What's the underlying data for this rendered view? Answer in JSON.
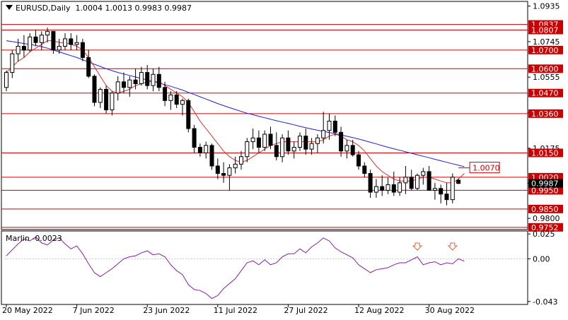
{
  "header": {
    "symbol": "EURUSD,Daily",
    "open": "1.0004",
    "high": "1.0013",
    "low": "0.9983",
    "close": "0.9987"
  },
  "indicator": {
    "name": "Marlin",
    "value": "-0.0023"
  },
  "colors": {
    "bull": "#ffffff",
    "bear": "#000000",
    "ma_fast": "#e03030",
    "ma_slow": "#2020d0",
    "level": "#cc0000",
    "marlin": "#8b1aa8",
    "arrow": "#e06040"
  },
  "chart_data": [
    {
      "type": "candlestick",
      "title": "EURUSD,Daily",
      "y_ticks": [
        "1.0935",
        "1.0745",
        "1.0555",
        "1.0365",
        "1.0175",
        "0.9987",
        "0.9800"
      ],
      "ylim": [
        0.974,
        1.096
      ],
      "x_tick_labels": [
        {
          "label": "20 May 2022",
          "index": 0
        },
        {
          "label": "7 Jun 2022",
          "index": 12
        },
        {
          "label": "23 Jun 2022",
          "index": 24
        },
        {
          "label": "11 Jul 2022",
          "index": 36
        },
        {
          "label": "27 Jul 2022",
          "index": 48
        },
        {
          "label": "12 Aug 2022",
          "index": 60
        },
        {
          "label": "30 Aug 2022",
          "index": 72
        }
      ],
      "levels": [
        {
          "value": 1.0837,
          "label": "1.0837"
        },
        {
          "value": 1.0807,
          "label": "1.0807"
        },
        {
          "value": 1.07,
          "label": "1.0700"
        },
        {
          "value": 1.06,
          "label": "1.0600"
        },
        {
          "value": 1.047,
          "label": "1.0470"
        },
        {
          "value": 1.036,
          "label": "1.0360"
        },
        {
          "value": 1.015,
          "label": "1.0150"
        },
        {
          "value": 1.002,
          "label": "1.0020"
        },
        {
          "value": 0.995,
          "label": "0.9950"
        },
        {
          "value": 0.985,
          "label": "0.9850"
        },
        {
          "value": 0.9752,
          "label": "0.9752"
        }
      ],
      "current_price": {
        "value": 0.9987,
        "label": "0.9987"
      },
      "target": {
        "value": 1.007,
        "label": "1.0070",
        "index": 77
      },
      "candles": [
        [
          1.05,
          1.059,
          1.048,
          1.058
        ],
        [
          1.058,
          1.07,
          1.055,
          1.068
        ],
        [
          1.068,
          1.076,
          1.064,
          1.072
        ],
        [
          1.072,
          1.078,
          1.066,
          1.07
        ],
        [
          1.07,
          1.079,
          1.069,
          1.077
        ],
        [
          1.077,
          1.081,
          1.072,
          1.074
        ],
        [
          1.074,
          1.08,
          1.07,
          1.078
        ],
        [
          1.078,
          1.082,
          1.074,
          1.08
        ],
        [
          1.08,
          1.08,
          1.068,
          1.07
        ],
        [
          1.07,
          1.076,
          1.068,
          1.072
        ],
        [
          1.072,
          1.079,
          1.07,
          1.076
        ],
        [
          1.076,
          1.079,
          1.07,
          1.073
        ],
        [
          1.073,
          1.078,
          1.07,
          1.074
        ],
        [
          1.074,
          1.076,
          1.064,
          1.066
        ],
        [
          1.066,
          1.07,
          1.055,
          1.056
        ],
        [
          1.056,
          1.057,
          1.04,
          1.042
        ],
        [
          1.042,
          1.05,
          1.039,
          1.049
        ],
        [
          1.049,
          1.051,
          1.036,
          1.038
        ],
        [
          1.038,
          1.048,
          1.035,
          1.047
        ],
        [
          1.047,
          1.056,
          1.043,
          1.053
        ],
        [
          1.053,
          1.058,
          1.047,
          1.05
        ],
        [
          1.05,
          1.056,
          1.045,
          1.054
        ],
        [
          1.054,
          1.06,
          1.049,
          1.052
        ],
        [
          1.052,
          1.061,
          1.051,
          1.058
        ],
        [
          1.058,
          1.062,
          1.049,
          1.051
        ],
        [
          1.051,
          1.06,
          1.048,
          1.057
        ],
        [
          1.057,
          1.061,
          1.048,
          1.05
        ],
        [
          1.05,
          1.053,
          1.04,
          1.043
        ],
        [
          1.043,
          1.048,
          1.038,
          1.046
        ],
        [
          1.046,
          1.048,
          1.039,
          1.041
        ],
        [
          1.041,
          1.044,
          1.035,
          1.043
        ],
        [
          1.043,
          1.044,
          1.026,
          1.028
        ],
        [
          1.028,
          1.03,
          1.015,
          1.018
        ],
        [
          1.018,
          1.02,
          1.013,
          1.015
        ],
        [
          1.015,
          1.021,
          1.012,
          1.019
        ],
        [
          1.019,
          1.02,
          1.006,
          1.008
        ],
        [
          1.008,
          1.012,
          1.001,
          1.004
        ],
        [
          1.004,
          1.01,
          0.999,
          1.003
        ],
        [
          1.003,
          1.009,
          0.995,
          1.007
        ],
        [
          1.007,
          1.013,
          1.004,
          1.009
        ],
        [
          1.009,
          1.016,
          1.006,
          1.013
        ],
        [
          1.013,
          1.023,
          1.01,
          1.021
        ],
        [
          1.021,
          1.028,
          1.017,
          1.023
        ],
        [
          1.023,
          1.027,
          1.015,
          1.018
        ],
        [
          1.018,
          1.027,
          1.016,
          1.025
        ],
        [
          1.025,
          1.029,
          1.017,
          1.019
        ],
        [
          1.019,
          1.026,
          1.011,
          1.013
        ],
        [
          1.013,
          1.025,
          1.01,
          1.023
        ],
        [
          1.023,
          1.027,
          1.014,
          1.016
        ],
        [
          1.016,
          1.021,
          1.012,
          1.018
        ],
        [
          1.018,
          1.026,
          1.016,
          1.024
        ],
        [
          1.024,
          1.028,
          1.014,
          1.017
        ],
        [
          1.017,
          1.023,
          1.014,
          1.02
        ],
        [
          1.02,
          1.025,
          1.015,
          1.023
        ],
        [
          1.023,
          1.037,
          1.02,
          1.027
        ],
        [
          1.027,
          1.036,
          1.022,
          1.032
        ],
        [
          1.032,
          1.035,
          1.024,
          1.026
        ],
        [
          1.026,
          1.029,
          1.013,
          1.016
        ],
        [
          1.016,
          1.022,
          1.012,
          1.019
        ],
        [
          1.019,
          1.022,
          1.013,
          1.014
        ],
        [
          1.014,
          1.016,
          1.006,
          1.008
        ],
        [
          1.008,
          1.01,
          1.002,
          1.004
        ],
        [
          1.004,
          1.006,
          0.991,
          0.994
        ],
        [
          0.994,
          1.001,
          0.991,
          0.997
        ],
        [
          0.997,
          1.003,
          0.992,
          0.995
        ],
        [
          0.995,
          1.002,
          0.993,
          0.998
        ],
        [
          0.998,
          1.005,
          0.992,
          0.994
        ],
        [
          0.994,
          1.002,
          0.992,
          0.999
        ],
        [
          0.999,
          1.008,
          0.993,
          1.002
        ],
        [
          1.002,
          1.006,
          0.995,
          0.996
        ],
        [
          0.996,
          1.004,
          0.995,
          1.003
        ],
        [
          1.003,
          1.007,
          0.998,
          1.005
        ],
        [
          1.005,
          1.008,
          0.996,
          0.995
        ],
        [
          0.995,
          0.999,
          0.99,
          0.996
        ],
        [
          0.996,
          0.998,
          0.988,
          0.993
        ],
        [
          0.993,
          0.999,
          0.987,
          0.99
        ],
        [
          0.99,
          1.004,
          0.988,
          1.002
        ],
        [
          1.0004,
          1.0013,
          0.9983,
          0.9987
        ]
      ],
      "ma_fast": [
        1.058,
        1.061,
        1.064,
        1.066,
        1.069,
        1.071,
        1.073,
        1.075,
        1.075,
        1.074,
        1.074,
        1.073,
        1.072,
        1.07,
        1.066,
        1.061,
        1.056,
        1.051,
        1.048,
        1.047,
        1.048,
        1.049,
        1.051,
        1.052,
        1.053,
        1.053,
        1.053,
        1.051,
        1.049,
        1.047,
        1.045,
        1.042,
        1.037,
        1.032,
        1.028,
        1.024,
        1.02,
        1.016,
        1.013,
        1.011,
        1.01,
        1.011,
        1.013,
        1.015,
        1.017,
        1.019,
        1.02,
        1.021,
        1.021,
        1.021,
        1.021,
        1.021,
        1.021,
        1.021,
        1.022,
        1.024,
        1.025,
        1.024,
        1.022,
        1.021,
        1.019,
        1.016,
        1.012,
        1.008,
        1.005,
        1.003,
        1.001,
        1.0,
        1.0,
        1.0,
        1.001,
        1.002,
        1.002,
        1.001,
        1.0,
        0.999,
        0.999,
        1.001,
        1.004
      ],
      "ma_slow": [
        1.075,
        1.0745,
        1.074,
        1.0735,
        1.073,
        1.0725,
        1.0718,
        1.071,
        1.07,
        1.069,
        1.068,
        1.067,
        1.066,
        1.0648,
        1.0636,
        1.0624,
        1.0612,
        1.06,
        1.059,
        1.058,
        1.0572,
        1.0564,
        1.0556,
        1.0548,
        1.054,
        1.0532,
        1.0524,
        1.0515,
        1.0506,
        1.0496,
        1.0486,
        1.0474,
        1.0462,
        1.045,
        1.0438,
        1.0426,
        1.0414,
        1.0403,
        1.0392,
        1.0382,
        1.0372,
        1.0362,
        1.0354,
        1.0346,
        1.0338,
        1.033,
        1.0322,
        1.0315,
        1.0308,
        1.03,
        1.0292,
        1.0285,
        1.0278,
        1.0271,
        1.0265,
        1.0259,
        1.0253,
        1.0246,
        1.0239,
        1.0232,
        1.0224,
        1.0216,
        1.0207,
        1.0198,
        1.0189,
        1.018,
        1.0172,
        1.0164,
        1.0156,
        1.0148,
        1.014,
        1.0132,
        1.0124,
        1.0116,
        1.0108,
        1.01,
        1.0092,
        1.0084,
        1.0076
      ]
    },
    {
      "type": "line",
      "title": "Marlin -0.0023",
      "y_ticks": [
        "0.025",
        "0.00",
        "-0.043"
      ],
      "ylim": [
        -0.046,
        0.028
      ],
      "series": [
        {
          "values": [
            0.003,
            0.009,
            0.015,
            0.02,
            0.018,
            0.022,
            0.016,
            0.014,
            0.019,
            0.021,
            0.015,
            0.01,
            0.013,
            0.005,
            -0.005,
            -0.014,
            -0.018,
            -0.014,
            -0.01,
            -0.005,
            0.0,
            0.002,
            0.003,
            0.006,
            0.008,
            0.004,
            0.005,
            0.002,
            -0.006,
            -0.012,
            -0.016,
            -0.026,
            -0.031,
            -0.032,
            -0.035,
            -0.04,
            -0.037,
            -0.03,
            -0.025,
            -0.02,
            -0.012,
            -0.004,
            -0.002,
            -0.006,
            -0.001,
            -0.006,
            -0.004,
            0.002,
            0.005,
            0.005,
            0.01,
            0.006,
            0.012,
            0.016,
            0.021,
            0.018,
            0.011,
            0.007,
            0.004,
            0.001,
            -0.006,
            -0.01,
            -0.014,
            -0.011,
            -0.01,
            -0.009,
            -0.006,
            -0.004,
            -0.004,
            -0.001,
            0.002,
            -0.006,
            -0.004,
            -0.003,
            -0.006,
            -0.004,
            -0.005,
            0.0,
            -0.0023
          ]
        }
      ],
      "arrows": [
        {
          "index": 70
        },
        {
          "index": 76
        }
      ]
    }
  ]
}
